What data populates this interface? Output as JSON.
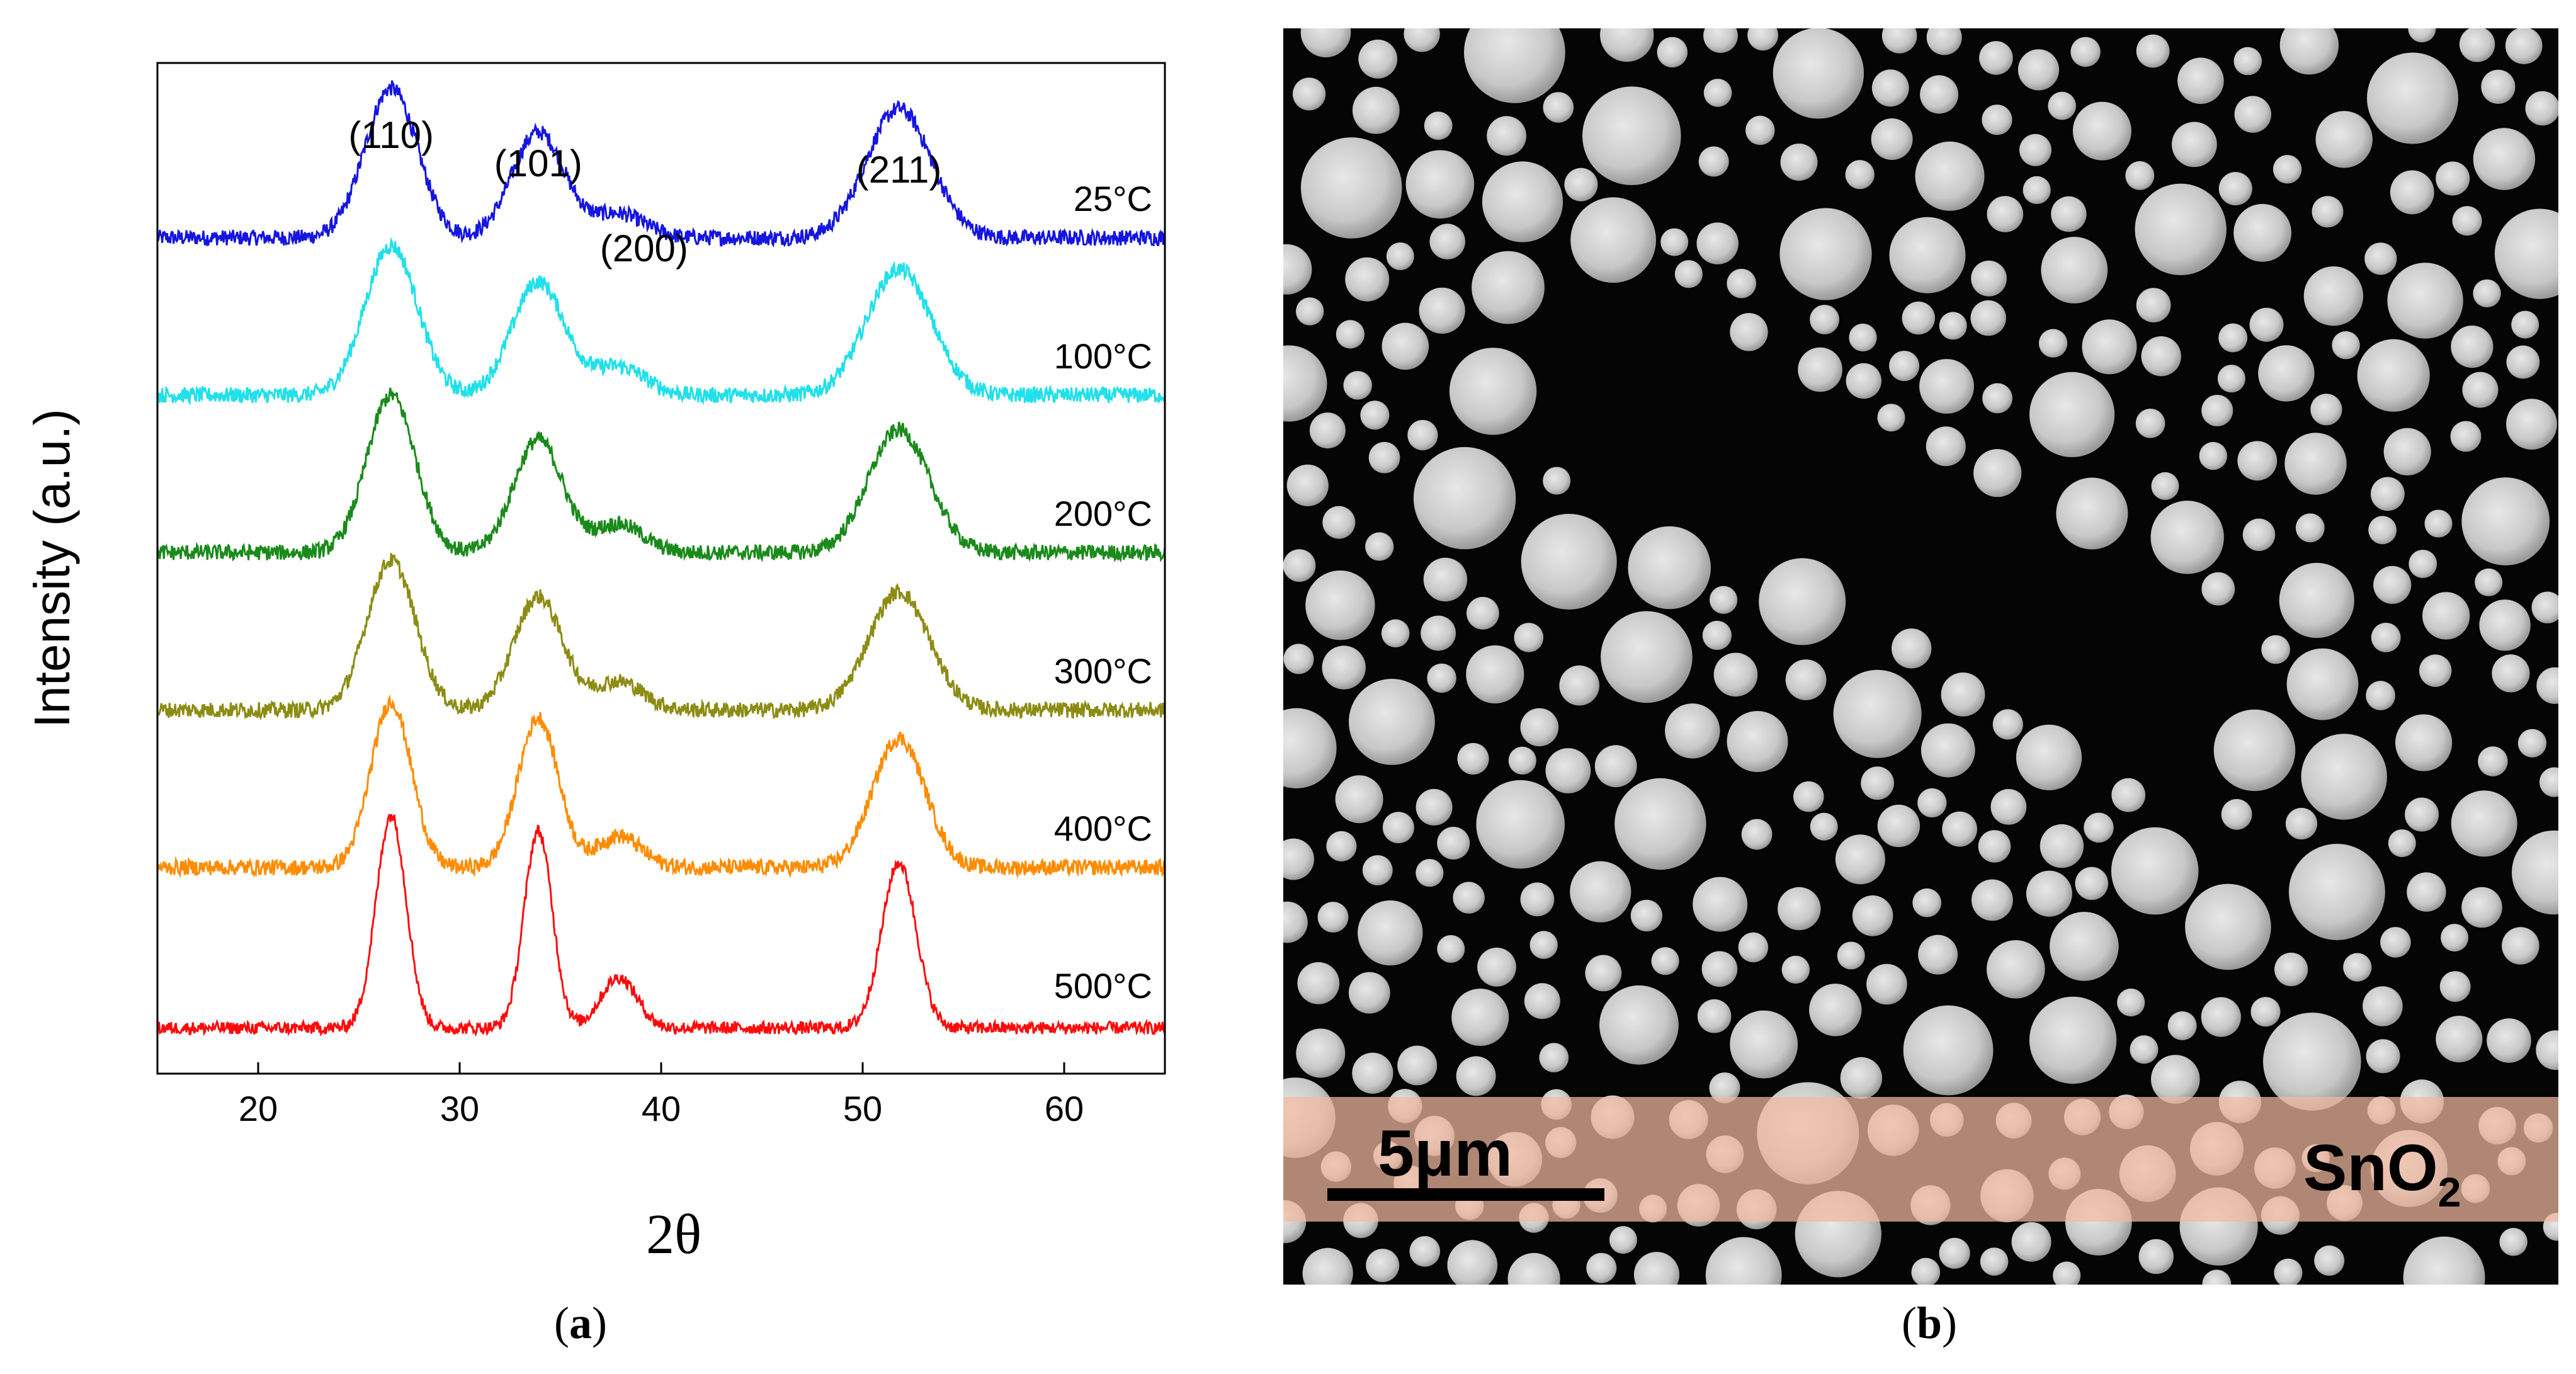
{
  "chart_data": {
    "type": "line",
    "title": "",
    "xlabel": "2θ",
    "ylabel": "Intensity (a.u.)",
    "xlim": [
      15,
      65
    ],
    "xticks": [
      20,
      30,
      40,
      50,
      60
    ],
    "yticks_shown": false,
    "peak_labels": [
      {
        "label": "(110)",
        "x": 26.6
      },
      {
        "label": "(101)",
        "x": 33.9
      },
      {
        "label": "(200)",
        "x": 37.9
      },
      {
        "label": "(211)",
        "x": 51.8
      }
    ],
    "series": [
      {
        "name": "25°C",
        "color": "#1515e0",
        "offset": 5.0,
        "baseline": 0.05,
        "heights": [
          0.95,
          0.67,
          0.15,
          0.82
        ],
        "widths": [
          1.3,
          1.3,
          1.3,
          1.6
        ],
        "noise": 0.05
      },
      {
        "name": "100°C",
        "color": "#20e0ea",
        "offset": 4.0,
        "baseline": 0.05,
        "heights": [
          0.95,
          0.72,
          0.18,
          0.8
        ],
        "widths": [
          1.3,
          1.3,
          1.3,
          1.6
        ],
        "noise": 0.05
      },
      {
        "name": "200°C",
        "color": "#1a8a1a",
        "offset": 3.0,
        "baseline": 0.05,
        "heights": [
          1.0,
          0.72,
          0.18,
          0.78
        ],
        "widths": [
          1.2,
          1.2,
          1.2,
          1.5
        ],
        "noise": 0.05
      },
      {
        "name": "300°C",
        "color": "#8c8c14",
        "offset": 2.0,
        "baseline": 0.05,
        "heights": [
          0.95,
          0.72,
          0.18,
          0.75
        ],
        "widths": [
          1.2,
          1.2,
          1.2,
          1.5
        ],
        "noise": 0.05
      },
      {
        "name": "400°C",
        "color": "#ff8c00",
        "offset": 1.0,
        "baseline": 0.05,
        "heights": [
          1.05,
          0.95,
          0.2,
          0.82
        ],
        "widths": [
          1.0,
          1.0,
          1.1,
          1.3
        ],
        "noise": 0.05
      },
      {
        "name": "500°C",
        "color": "#ff0a0a",
        "offset": 0.0,
        "baseline": 0.03,
        "heights": [
          1.35,
          1.25,
          0.32,
          1.05
        ],
        "widths": [
          0.75,
          0.7,
          0.9,
          0.85
        ],
        "noise": 0.04
      }
    ]
  },
  "sem": {
    "scale_label": "5μm",
    "material_label": "SnO",
    "material_subscript": "2",
    "overlay_color": "#f2b8a0"
  },
  "captions": {
    "a": "a",
    "b": "b"
  }
}
